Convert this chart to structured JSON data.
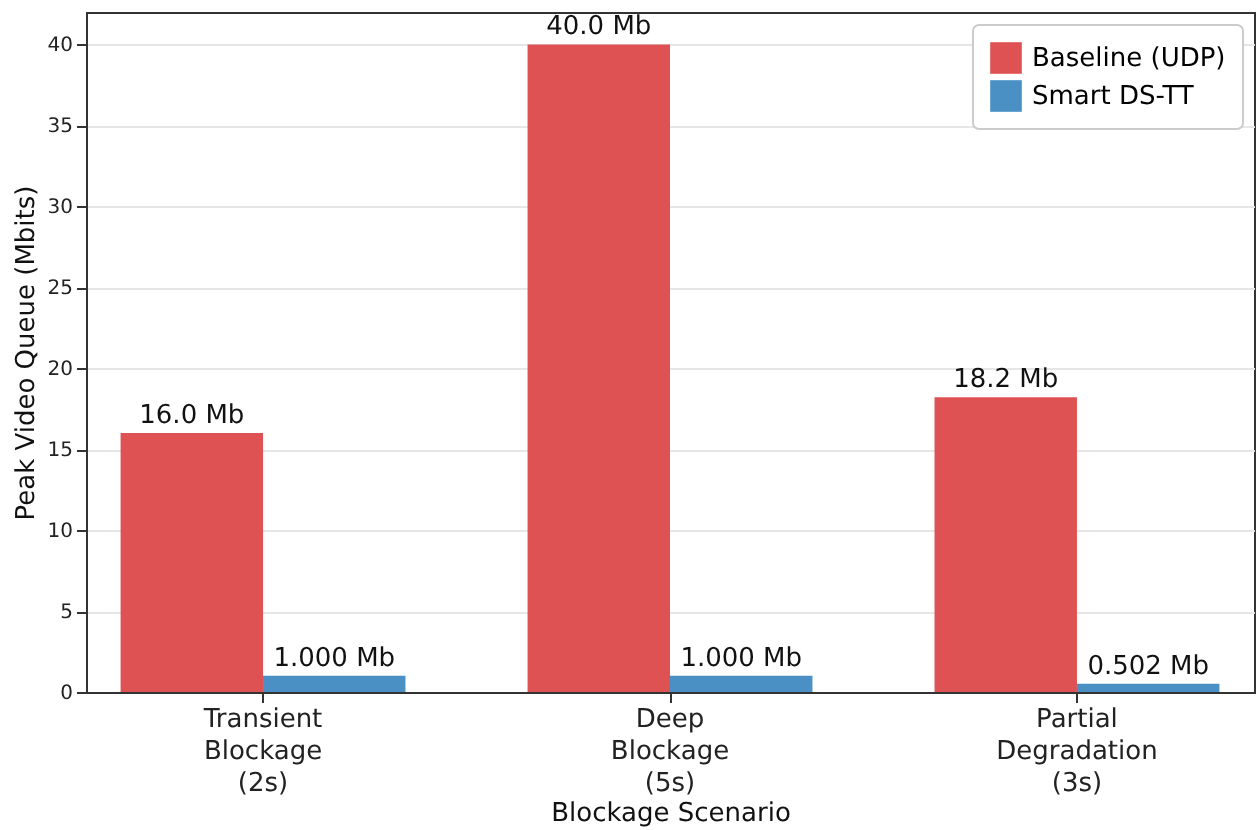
{
  "chart_data": {
    "type": "bar",
    "xlabel": "Blockage Scenario",
    "ylabel": "Peak Video Queue (Mbits)",
    "categories": [
      "Transient\nBlockage\n(2s)",
      "Deep\nBlockage\n(5s)",
      "Partial\nDegradation\n(3s)"
    ],
    "series": [
      {
        "name": "Baseline (UDP)",
        "color": "#df5254",
        "values": [
          16.0,
          40.0,
          18.2
        ],
        "value_labels": [
          "16.0 Mb",
          "40.0 Mb",
          "18.2 Mb"
        ]
      },
      {
        "name": "Smart DS-TT",
        "color": "#4a90c4",
        "values": [
          1.0,
          1.0,
          0.502
        ],
        "value_labels": [
          "1.000 Mb",
          "1.000 Mb",
          "0.502 Mb"
        ]
      }
    ],
    "ylim": [
      0,
      42
    ],
    "yticks": [
      0,
      5,
      10,
      15,
      20,
      25,
      30,
      35,
      40
    ],
    "grid": "y",
    "legend": "top right"
  }
}
